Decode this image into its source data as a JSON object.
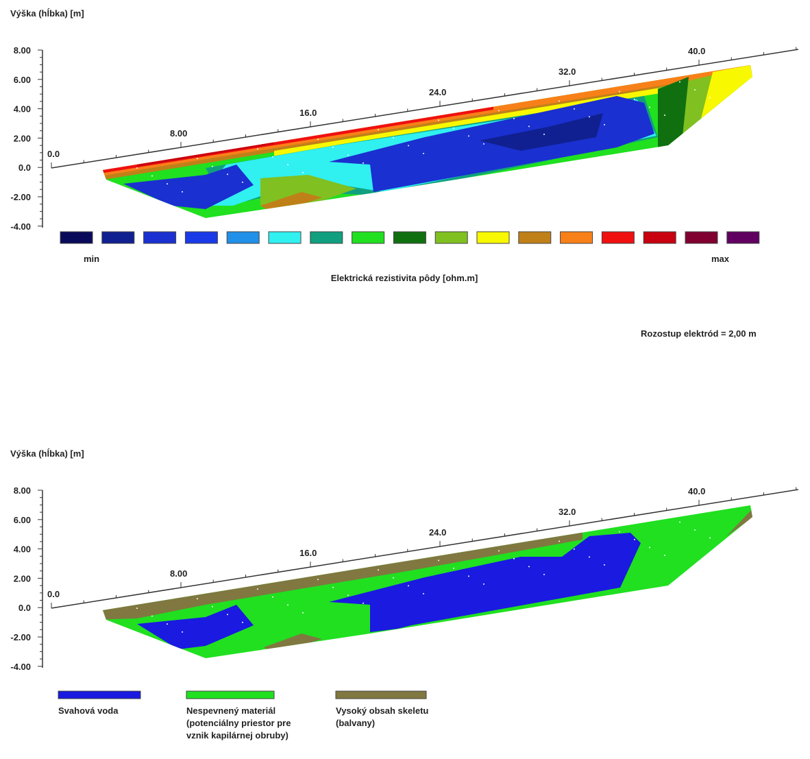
{
  "panels": [
    {
      "y_axis_label": "Výška (hĺbka) [m]",
      "y_ticks": [
        "8.00",
        "6.00",
        "4.00",
        "2.00",
        "0.0",
        "-2.00",
        "-4.00"
      ],
      "x_ticks": [
        "0.0",
        "8.00",
        "16.0",
        "24.0",
        "32.0",
        "40.0"
      ],
      "legend": {
        "colors": [
          "#0a0a5a",
          "#102090",
          "#1a30d0",
          "#1a3ae8",
          "#2090e8",
          "#30f0f0",
          "#10a080",
          "#20e020",
          "#107010",
          "#80c020",
          "#f8f800",
          "#c08018",
          "#f88018",
          "#f01010",
          "#c80010",
          "#800030",
          "#600060"
        ],
        "min": "min",
        "max": "max",
        "title": "Elektrická rezistivita pôdy [ohm.m]"
      }
    },
    {
      "y_axis_label": "Výška (hĺbka) [m]",
      "y_ticks": [
        "8.00",
        "6.00",
        "4.00",
        "2.00",
        "0.0",
        "-2.00",
        "-4.00"
      ],
      "x_ticks": [
        "0.0",
        "8.00",
        "16.0",
        "24.0",
        "32.0",
        "40.0"
      ],
      "legend": {
        "items": [
          {
            "color": "#1a1ae0",
            "label": "Svahová voda"
          },
          {
            "color": "#20e020",
            "label": "Nespevnený materiál (potenciálny priestor pre vznik kapilárnej obruby)"
          },
          {
            "color": "#807840",
            "label": "Vysoký obsah skeletu (balvany)"
          }
        ]
      }
    }
  ],
  "note": "Rozostup elektród = 2,00 m"
}
